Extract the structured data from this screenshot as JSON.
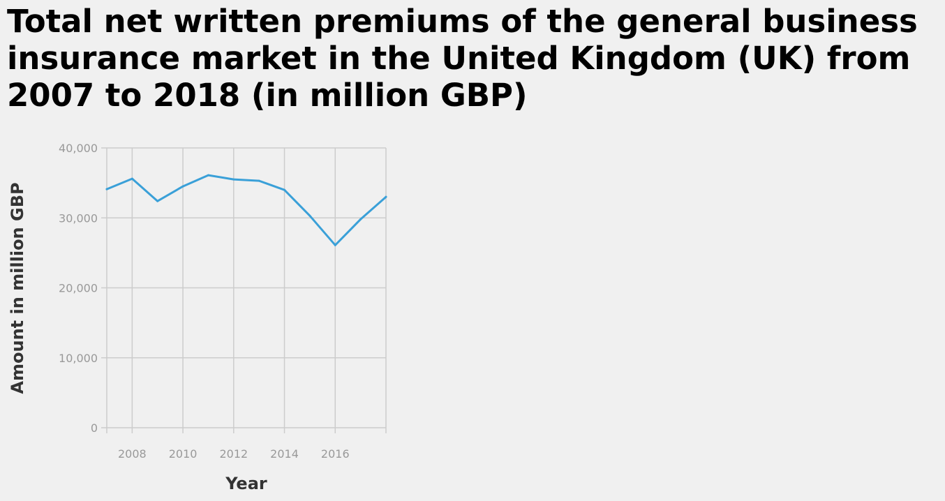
{
  "chart_data": {
    "type": "line",
    "title": "Total net written premiums of the general business insurance market in the United Kingdom (UK) from 2007 to 2018 (in million GBP)",
    "xlabel": "Year",
    "ylabel": "Amount in million GBP",
    "x": [
      2007,
      2008,
      2009,
      2010,
      2011,
      2012,
      2013,
      2014,
      2015,
      2016,
      2017,
      2018
    ],
    "series": [
      {
        "values": [
          34100,
          35600,
          32400,
          34500,
          36100,
          35500,
          35300,
          34000,
          30300,
          26100,
          29800,
          33000
        ]
      }
    ],
    "xlim": [
      2007,
      2018
    ],
    "ylim": [
      0,
      40000
    ],
    "x_ticks": [
      "2008",
      "2010",
      "2012",
      "2014",
      "2016"
    ],
    "y_ticks": [
      "0",
      "10,000",
      "20,000",
      "30,000",
      "40,000"
    ],
    "grid": true,
    "line_color": "#3aa0d8"
  }
}
